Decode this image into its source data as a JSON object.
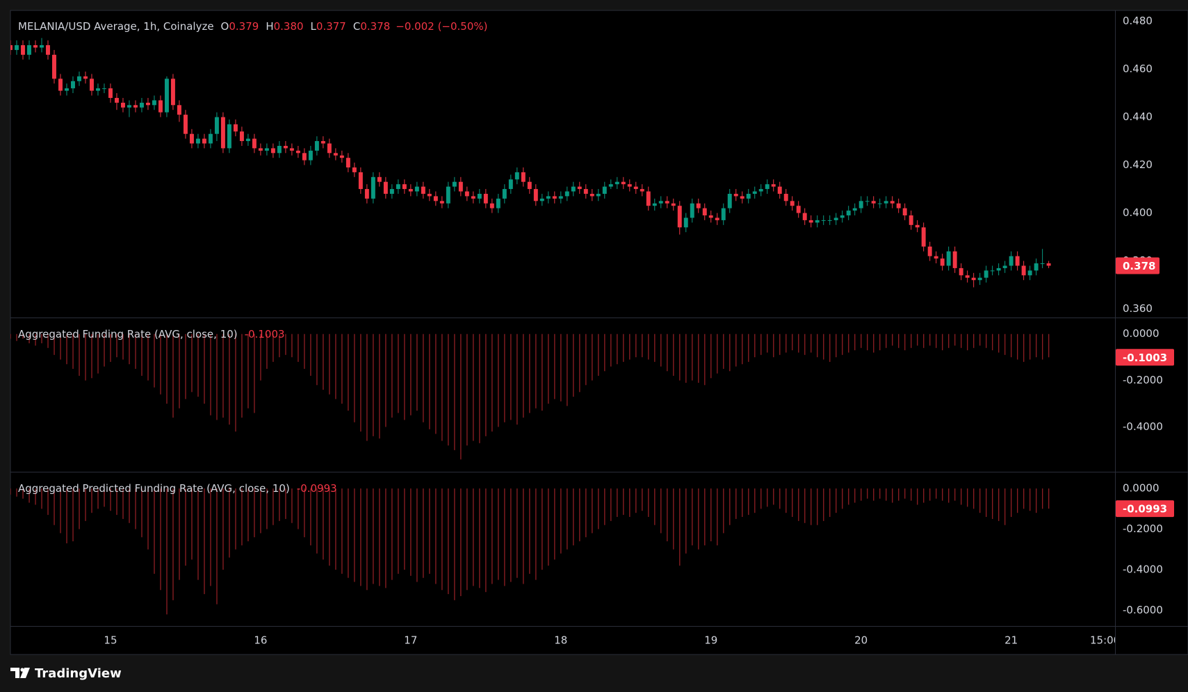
{
  "chart_data": [
    {
      "type": "candlestick",
      "legend": {
        "symbol": "MELANIA/USD Average, 1h, Coinalyze",
        "open_label": "O",
        "open": "0.379",
        "high_label": "H",
        "high": "0.380",
        "low_label": "L",
        "low": "0.377",
        "close_label": "C",
        "close": "0.378",
        "change": "−0.002 (−0.50%)"
      },
      "last_value_label": "0.378",
      "up_color": "#089981",
      "down_color": "#f23645",
      "xlim": [
        0,
        176.6
      ],
      "ylim": [
        0.3564,
        0.4845
      ],
      "yticks": [
        {
          "value": 0.48,
          "label": "0.480"
        },
        {
          "value": 0.46,
          "label": "0.460"
        },
        {
          "value": 0.44,
          "label": "0.440"
        },
        {
          "value": 0.42,
          "label": "0.420"
        },
        {
          "value": 0.4,
          "label": "0.400"
        },
        {
          "value": 0.38,
          "label": "0.380"
        },
        {
          "value": 0.36,
          "label": "0.360"
        }
      ],
      "grid": false,
      "open": [
        0.47,
        0.468,
        0.47,
        0.466,
        0.47,
        0.469,
        0.47,
        0.466,
        0.456,
        0.451,
        0.452,
        0.455,
        0.457,
        0.456,
        0.451,
        0.452,
        0.452,
        0.448,
        0.446,
        0.444,
        0.445,
        0.444,
        0.446,
        0.445,
        0.447,
        0.442,
        0.456,
        0.445,
        0.441,
        0.433,
        0.429,
        0.431,
        0.429,
        0.433,
        0.44,
        0.427,
        0.437,
        0.434,
        0.43,
        0.431,
        0.427,
        0.426,
        0.427,
        0.425,
        0.428,
        0.427,
        0.426,
        0.425,
        0.422,
        0.426,
        0.43,
        0.429,
        0.425,
        0.424,
        0.423,
        0.419,
        0.417,
        0.41,
        0.406,
        0.415,
        0.413,
        0.408,
        0.41,
        0.412,
        0.41,
        0.409,
        0.411,
        0.408,
        0.407,
        0.405,
        0.404,
        0.411,
        0.413,
        0.409,
        0.407,
        0.406,
        0.408,
        0.404,
        0.402,
        0.406,
        0.41,
        0.414,
        0.417,
        0.413,
        0.41,
        0.405,
        0.406,
        0.407,
        0.406,
        0.407,
        0.409,
        0.411,
        0.41,
        0.408,
        0.407,
        0.408,
        0.411,
        0.412,
        0.413,
        0.412,
        0.411,
        0.41,
        0.409,
        0.403,
        0.404,
        0.405,
        0.404,
        0.403,
        0.394,
        0.398,
        0.404,
        0.402,
        0.399,
        0.398,
        0.397,
        0.402,
        0.408,
        0.407,
        0.406,
        0.408,
        0.409,
        0.41,
        0.412,
        0.411,
        0.408,
        0.405,
        0.403,
        0.4,
        0.397,
        0.396,
        0.397,
        0.397,
        0.397,
        0.398,
        0.399,
        0.401,
        0.402,
        0.405,
        0.405,
        0.404,
        0.404,
        0.405,
        0.404,
        0.402,
        0.399,
        0.395,
        0.394,
        0.386,
        0.382,
        0.381,
        0.378,
        0.384,
        0.377,
        0.374,
        0.373,
        0.372,
        0.373,
        0.376,
        0.376,
        0.377,
        0.378,
        0.382,
        0.378,
        0.374,
        0.376,
        0.379,
        0.379
      ],
      "high": [
        0.472,
        0.472,
        0.472,
        0.472,
        0.472,
        0.473,
        0.472,
        0.468,
        0.458,
        0.454,
        0.457,
        0.459,
        0.459,
        0.458,
        0.454,
        0.454,
        0.454,
        0.45,
        0.448,
        0.447,
        0.447,
        0.448,
        0.448,
        0.449,
        0.449,
        0.457,
        0.458,
        0.447,
        0.443,
        0.435,
        0.433,
        0.433,
        0.435,
        0.442,
        0.442,
        0.439,
        0.439,
        0.436,
        0.433,
        0.433,
        0.429,
        0.429,
        0.429,
        0.43,
        0.43,
        0.429,
        0.428,
        0.427,
        0.428,
        0.432,
        0.432,
        0.431,
        0.427,
        0.426,
        0.425,
        0.421,
        0.419,
        0.412,
        0.417,
        0.417,
        0.415,
        0.412,
        0.414,
        0.414,
        0.412,
        0.413,
        0.413,
        0.41,
        0.409,
        0.407,
        0.413,
        0.415,
        0.415,
        0.411,
        0.409,
        0.41,
        0.41,
        0.406,
        0.408,
        0.412,
        0.416,
        0.419,
        0.419,
        0.415,
        0.412,
        0.408,
        0.409,
        0.409,
        0.409,
        0.411,
        0.413,
        0.413,
        0.412,
        0.41,
        0.41,
        0.413,
        0.414,
        0.415,
        0.415,
        0.414,
        0.413,
        0.412,
        0.411,
        0.406,
        0.407,
        0.407,
        0.406,
        0.405,
        0.4,
        0.406,
        0.406,
        0.404,
        0.401,
        0.4,
        0.404,
        0.41,
        0.41,
        0.409,
        0.41,
        0.411,
        0.412,
        0.414,
        0.414,
        0.413,
        0.41,
        0.407,
        0.405,
        0.402,
        0.399,
        0.399,
        0.399,
        0.399,
        0.4,
        0.401,
        0.403,
        0.404,
        0.407,
        0.407,
        0.407,
        0.406,
        0.407,
        0.407,
        0.406,
        0.404,
        0.401,
        0.397,
        0.396,
        0.388,
        0.384,
        0.383,
        0.386,
        0.386,
        0.379,
        0.376,
        0.375,
        0.375,
        0.378,
        0.378,
        0.379,
        0.38,
        0.384,
        0.384,
        0.38,
        0.378,
        0.381,
        0.385,
        0.38
      ],
      "low": [
        0.466,
        0.466,
        0.464,
        0.464,
        0.467,
        0.467,
        0.464,
        0.454,
        0.449,
        0.449,
        0.45,
        0.453,
        0.454,
        0.449,
        0.449,
        0.45,
        0.446,
        0.443,
        0.442,
        0.44,
        0.442,
        0.442,
        0.443,
        0.443,
        0.44,
        0.44,
        0.443,
        0.438,
        0.431,
        0.427,
        0.427,
        0.427,
        0.427,
        0.43,
        0.425,
        0.425,
        0.432,
        0.428,
        0.428,
        0.425,
        0.424,
        0.424,
        0.423,
        0.423,
        0.425,
        0.424,
        0.423,
        0.42,
        0.42,
        0.424,
        0.427,
        0.423,
        0.422,
        0.421,
        0.417,
        0.415,
        0.408,
        0.404,
        0.404,
        0.411,
        0.406,
        0.406,
        0.408,
        0.408,
        0.407,
        0.407,
        0.406,
        0.405,
        0.403,
        0.402,
        0.402,
        0.409,
        0.407,
        0.405,
        0.404,
        0.404,
        0.402,
        0.4,
        0.4,
        0.404,
        0.408,
        0.412,
        0.411,
        0.408,
        0.403,
        0.403,
        0.404,
        0.404,
        0.404,
        0.405,
        0.407,
        0.408,
        0.406,
        0.405,
        0.405,
        0.406,
        0.41,
        0.41,
        0.41,
        0.409,
        0.408,
        0.407,
        0.401,
        0.401,
        0.402,
        0.402,
        0.401,
        0.391,
        0.392,
        0.396,
        0.4,
        0.397,
        0.396,
        0.395,
        0.395,
        0.4,
        0.405,
        0.404,
        0.404,
        0.406,
        0.407,
        0.408,
        0.409,
        0.406,
        0.403,
        0.401,
        0.398,
        0.395,
        0.394,
        0.394,
        0.395,
        0.395,
        0.395,
        0.396,
        0.397,
        0.399,
        0.4,
        0.403,
        0.402,
        0.402,
        0.402,
        0.402,
        0.4,
        0.397,
        0.393,
        0.392,
        0.384,
        0.38,
        0.379,
        0.376,
        0.376,
        0.375,
        0.372,
        0.371,
        0.369,
        0.37,
        0.371,
        0.374,
        0.374,
        0.375,
        0.376,
        0.376,
        0.372,
        0.372,
        0.374,
        0.377,
        0.377
      ],
      "close": [
        0.468,
        0.47,
        0.466,
        0.47,
        0.469,
        0.47,
        0.466,
        0.456,
        0.451,
        0.452,
        0.455,
        0.457,
        0.456,
        0.451,
        0.452,
        0.452,
        0.448,
        0.446,
        0.444,
        0.445,
        0.444,
        0.446,
        0.445,
        0.447,
        0.442,
        0.456,
        0.445,
        0.441,
        0.433,
        0.429,
        0.431,
        0.429,
        0.433,
        0.44,
        0.427,
        0.437,
        0.434,
        0.43,
        0.431,
        0.427,
        0.426,
        0.427,
        0.425,
        0.428,
        0.427,
        0.426,
        0.425,
        0.422,
        0.426,
        0.43,
        0.429,
        0.425,
        0.424,
        0.423,
        0.419,
        0.417,
        0.41,
        0.406,
        0.415,
        0.413,
        0.408,
        0.41,
        0.412,
        0.41,
        0.409,
        0.411,
        0.408,
        0.407,
        0.405,
        0.404,
        0.411,
        0.413,
        0.409,
        0.407,
        0.406,
        0.408,
        0.404,
        0.402,
        0.406,
        0.41,
        0.414,
        0.417,
        0.413,
        0.41,
        0.405,
        0.406,
        0.407,
        0.406,
        0.407,
        0.409,
        0.411,
        0.41,
        0.408,
        0.407,
        0.408,
        0.411,
        0.412,
        0.413,
        0.412,
        0.411,
        0.41,
        0.409,
        0.403,
        0.404,
        0.405,
        0.404,
        0.403,
        0.394,
        0.398,
        0.404,
        0.402,
        0.399,
        0.398,
        0.397,
        0.402,
        0.408,
        0.407,
        0.406,
        0.408,
        0.409,
        0.41,
        0.412,
        0.411,
        0.408,
        0.405,
        0.403,
        0.4,
        0.397,
        0.396,
        0.397,
        0.397,
        0.397,
        0.398,
        0.399,
        0.401,
        0.402,
        0.405,
        0.405,
        0.404,
        0.404,
        0.405,
        0.404,
        0.402,
        0.399,
        0.395,
        0.394,
        0.386,
        0.382,
        0.381,
        0.378,
        0.384,
        0.377,
        0.374,
        0.373,
        0.372,
        0.373,
        0.376,
        0.376,
        0.377,
        0.378,
        0.382,
        0.378,
        0.374,
        0.376,
        0.379,
        0.379,
        0.378
      ]
    },
    {
      "type": "bar",
      "title": "Aggregated Funding Rate (AVG, close, 10)",
      "last_value_label": "-0.1003",
      "color": "#8f1f24",
      "xlim": [
        0,
        176.6
      ],
      "ylim": [
        -0.593,
        0.068
      ],
      "yticks": [
        {
          "value": 0,
          "label": "0.0000"
        },
        {
          "value": -0.2,
          "label": "-0.2000"
        },
        {
          "value": -0.4,
          "label": "-0.4000"
        }
      ],
      "values": [
        -0.02,
        -0.03,
        -0.02,
        -0.04,
        -0.05,
        -0.04,
        -0.06,
        -0.09,
        -0.11,
        -0.13,
        -0.15,
        -0.18,
        -0.2,
        -0.19,
        -0.17,
        -0.14,
        -0.12,
        -0.1,
        -0.11,
        -0.13,
        -0.15,
        -0.18,
        -0.2,
        -0.23,
        -0.26,
        -0.3,
        -0.36,
        -0.32,
        -0.28,
        -0.25,
        -0.27,
        -0.3,
        -0.35,
        -0.37,
        -0.36,
        -0.39,
        -0.42,
        -0.36,
        -0.32,
        -0.34,
        -0.2,
        -0.15,
        -0.12,
        -0.1,
        -0.09,
        -0.1,
        -0.12,
        -0.15,
        -0.18,
        -0.22,
        -0.24,
        -0.26,
        -0.28,
        -0.3,
        -0.33,
        -0.38,
        -0.42,
        -0.46,
        -0.44,
        -0.45,
        -0.4,
        -0.36,
        -0.34,
        -0.37,
        -0.35,
        -0.33,
        -0.38,
        -0.41,
        -0.43,
        -0.46,
        -0.48,
        -0.5,
        -0.54,
        -0.48,
        -0.46,
        -0.47,
        -0.44,
        -0.42,
        -0.4,
        -0.38,
        -0.37,
        -0.39,
        -0.36,
        -0.34,
        -0.32,
        -0.33,
        -0.3,
        -0.28,
        -0.29,
        -0.31,
        -0.27,
        -0.25,
        -0.22,
        -0.2,
        -0.18,
        -0.16,
        -0.14,
        -0.13,
        -0.12,
        -0.11,
        -0.1,
        -0.1,
        -0.11,
        -0.12,
        -0.14,
        -0.16,
        -0.18,
        -0.2,
        -0.21,
        -0.2,
        -0.21,
        -0.22,
        -0.19,
        -0.17,
        -0.15,
        -0.16,
        -0.14,
        -0.13,
        -0.12,
        -0.1,
        -0.09,
        -0.08,
        -0.1,
        -0.09,
        -0.08,
        -0.07,
        -0.08,
        -0.09,
        -0.08,
        -0.1,
        -0.11,
        -0.12,
        -0.1,
        -0.09,
        -0.08,
        -0.07,
        -0.06,
        -0.07,
        -0.08,
        -0.07,
        -0.06,
        -0.05,
        -0.06,
        -0.07,
        -0.06,
        -0.05,
        -0.06,
        -0.05,
        -0.06,
        -0.07,
        -0.06,
        -0.05,
        -0.06,
        -0.07,
        -0.06,
        -0.05,
        -0.06,
        -0.07,
        -0.08,
        -0.09,
        -0.1,
        -0.11,
        -0.12,
        -0.11,
        -0.1,
        -0.11,
        -0.1003
      ]
    },
    {
      "type": "bar",
      "title": "Aggregated Predicted Funding Rate (AVG, close, 10)",
      "last_value_label": "-0.0993",
      "color": "#8f1f24",
      "xlim": [
        0,
        176.6
      ],
      "ylim": [
        -0.677,
        0.079
      ],
      "yticks": [
        {
          "value": 0,
          "label": "0.0000"
        },
        {
          "value": -0.2,
          "label": "-0.2000"
        },
        {
          "value": -0.4,
          "label": "-0.4000"
        },
        {
          "value": -0.6,
          "label": "-0.6000"
        }
      ],
      "xticks": [
        {
          "value": 16,
          "label": "15"
        },
        {
          "value": 40,
          "label": "16"
        },
        {
          "value": 64,
          "label": "17"
        },
        {
          "value": 88,
          "label": "18"
        },
        {
          "value": 112,
          "label": "19"
        },
        {
          "value": 136,
          "label": "20"
        },
        {
          "value": 160,
          "label": "21"
        },
        {
          "value": 175,
          "label": "15:00"
        }
      ],
      "values": [
        -0.03,
        -0.04,
        -0.05,
        -0.07,
        -0.08,
        -0.1,
        -0.13,
        -0.18,
        -0.22,
        -0.27,
        -0.26,
        -0.2,
        -0.16,
        -0.12,
        -0.1,
        -0.09,
        -0.11,
        -0.13,
        -0.15,
        -0.17,
        -0.2,
        -0.24,
        -0.3,
        -0.42,
        -0.5,
        -0.62,
        -0.55,
        -0.45,
        -0.38,
        -0.35,
        -0.45,
        -0.52,
        -0.48,
        -0.57,
        -0.4,
        -0.34,
        -0.3,
        -0.28,
        -0.26,
        -0.24,
        -0.22,
        -0.2,
        -0.18,
        -0.16,
        -0.15,
        -0.17,
        -0.2,
        -0.24,
        -0.28,
        -0.32,
        -0.35,
        -0.38,
        -0.4,
        -0.42,
        -0.44,
        -0.46,
        -0.48,
        -0.5,
        -0.47,
        -0.48,
        -0.49,
        -0.45,
        -0.42,
        -0.4,
        -0.43,
        -0.46,
        -0.44,
        -0.42,
        -0.47,
        -0.5,
        -0.52,
        -0.55,
        -0.53,
        -0.5,
        -0.48,
        -0.49,
        -0.51,
        -0.47,
        -0.45,
        -0.48,
        -0.46,
        -0.44,
        -0.47,
        -0.42,
        -0.45,
        -0.4,
        -0.38,
        -0.35,
        -0.32,
        -0.3,
        -0.28,
        -0.26,
        -0.24,
        -0.22,
        -0.2,
        -0.18,
        -0.16,
        -0.14,
        -0.13,
        -0.14,
        -0.12,
        -0.11,
        -0.14,
        -0.18,
        -0.22,
        -0.26,
        -0.3,
        -0.38,
        -0.32,
        -0.28,
        -0.3,
        -0.28,
        -0.26,
        -0.28,
        -0.22,
        -0.18,
        -0.15,
        -0.14,
        -0.13,
        -0.12,
        -0.1,
        -0.09,
        -0.08,
        -0.1,
        -0.12,
        -0.14,
        -0.16,
        -0.17,
        -0.18,
        -0.18,
        -0.16,
        -0.14,
        -0.12,
        -0.1,
        -0.08,
        -0.07,
        -0.06,
        -0.05,
        -0.06,
        -0.05,
        -0.06,
        -0.07,
        -0.06,
        -0.05,
        -0.06,
        -0.08,
        -0.07,
        -0.06,
        -0.05,
        -0.06,
        -0.07,
        -0.06,
        -0.08,
        -0.09,
        -0.1,
        -0.12,
        -0.14,
        -0.15,
        -0.16,
        -0.18,
        -0.14,
        -0.12,
        -0.1,
        -0.11,
        -0.12,
        -0.1,
        -0.0993
      ]
    }
  ],
  "footer": {
    "brand": "TradingView"
  }
}
